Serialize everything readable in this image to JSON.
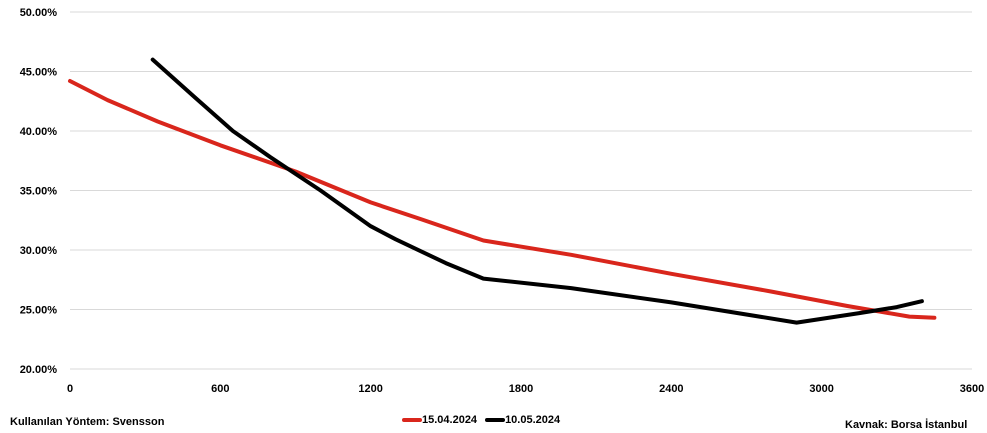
{
  "chart_data": {
    "type": "line",
    "x_ticks": [
      "0",
      "600",
      "1200",
      "1800",
      "2400",
      "3000",
      "3600"
    ],
    "y_ticks": [
      "20.00%",
      "25.00%",
      "30.00%",
      "35.00%",
      "40.00%",
      "45.00%",
      "50.00%"
    ],
    "xlim": [
      0,
      3600
    ],
    "ylim": [
      20,
      50
    ],
    "grid": "horizontal",
    "legend_position": "bottom",
    "series": [
      {
        "name": "15.04.2024",
        "color": "#d9261c",
        "points": [
          [
            0,
            44.2
          ],
          [
            150,
            42.6
          ],
          [
            350,
            40.8
          ],
          [
            600,
            38.8
          ],
          [
            900,
            36.6
          ],
          [
            1200,
            34.0
          ],
          [
            1400,
            32.6
          ],
          [
            1650,
            30.8
          ],
          [
            2000,
            29.6
          ],
          [
            2400,
            28.0
          ],
          [
            2800,
            26.5
          ],
          [
            3100,
            25.3
          ],
          [
            3350,
            24.4
          ],
          [
            3450,
            24.3
          ]
        ]
      },
      {
        "name": "10.05.2024",
        "color": "#000000",
        "points": [
          [
            330,
            46.0
          ],
          [
            500,
            42.8
          ],
          [
            650,
            40.0
          ],
          [
            800,
            37.8
          ],
          [
            1000,
            35.0
          ],
          [
            1200,
            32.0
          ],
          [
            1300,
            30.9
          ],
          [
            1500,
            28.9
          ],
          [
            1650,
            27.6
          ],
          [
            2000,
            26.8
          ],
          [
            2400,
            25.6
          ],
          [
            2900,
            23.9
          ],
          [
            3150,
            24.7
          ],
          [
            3300,
            25.2
          ],
          [
            3400,
            25.7
          ]
        ]
      }
    ]
  },
  "footer": {
    "method": "Kullanılan Yöntem: Svensson",
    "source": "Kavnak: Borsa İstanbul"
  }
}
